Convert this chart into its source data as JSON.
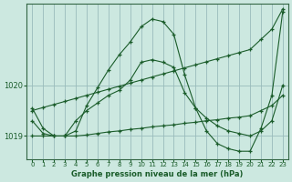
{
  "title": "Graphe pression niveau de la mer (hPa)",
  "background_color": "#cce8e0",
  "grid_color": "#99bbbb",
  "line_color": "#1a5c2a",
  "xlim": [
    -0.5,
    23.5
  ],
  "ylim": [
    1018.55,
    1021.6
  ],
  "yticks": [
    1019,
    1020
  ],
  "xticks": [
    0,
    1,
    2,
    3,
    4,
    5,
    6,
    7,
    8,
    9,
    10,
    11,
    12,
    13,
    14,
    15,
    16,
    17,
    18,
    19,
    20,
    21,
    22,
    23
  ],
  "curves": [
    {
      "x": [
        0,
        1,
        2,
        3,
        4,
        5,
        6,
        7,
        8,
        9,
        10,
        11,
        12,
        13,
        14,
        15,
        16,
        17,
        18,
        19,
        20,
        21,
        22,
        23
      ],
      "y": [
        1019.5,
        1019.56,
        1019.62,
        1019.68,
        1019.74,
        1019.8,
        1019.86,
        1019.92,
        1019.98,
        1020.04,
        1020.1,
        1020.16,
        1020.22,
        1020.28,
        1020.34,
        1020.4,
        1020.46,
        1020.52,
        1020.58,
        1020.64,
        1020.7,
        1020.9,
        1021.1,
        1021.5
      ]
    },
    {
      "x": [
        0,
        1,
        2,
        3,
        4,
        5,
        6,
        7,
        8,
        9,
        10,
        11,
        12,
        13,
        14,
        15,
        16,
        17,
        18,
        19,
        20,
        21,
        22,
        23
      ],
      "y": [
        1019.0,
        1019.0,
        1019.0,
        1019.0,
        1019.0,
        1019.02,
        1019.05,
        1019.08,
        1019.1,
        1019.13,
        1019.15,
        1019.18,
        1019.2,
        1019.22,
        1019.25,
        1019.27,
        1019.3,
        1019.32,
        1019.35,
        1019.37,
        1019.4,
        1019.5,
        1019.6,
        1019.8
      ]
    },
    {
      "x": [
        0,
        1,
        2,
        3,
        4,
        5,
        6,
        7,
        8,
        9,
        10,
        11,
        12,
        13,
        14,
        15,
        16,
        17,
        18,
        19,
        20,
        21,
        22,
        23
      ],
      "y": [
        1019.3,
        1019.05,
        1019.0,
        1019.0,
        1019.3,
        1019.5,
        1019.65,
        1019.8,
        1019.9,
        1020.1,
        1020.45,
        1020.5,
        1020.45,
        1020.35,
        1019.85,
        1019.55,
        1019.35,
        1019.2,
        1019.1,
        1019.05,
        1019.0,
        1019.1,
        1019.3,
        1020.0
      ]
    },
    {
      "x": [
        0,
        1,
        2,
        3,
        4,
        5,
        6,
        7,
        8,
        9,
        10,
        11,
        12,
        13,
        14,
        15,
        16,
        17,
        18,
        19,
        20,
        21,
        22,
        23
      ],
      "y": [
        1019.55,
        1019.15,
        1019.0,
        1019.0,
        1019.1,
        1019.6,
        1019.95,
        1020.3,
        1020.6,
        1020.85,
        1021.15,
        1021.3,
        1021.25,
        1021.0,
        1020.2,
        1019.55,
        1019.1,
        1018.85,
        1018.75,
        1018.7,
        1018.7,
        1019.15,
        1019.8,
        1021.45
      ]
    }
  ]
}
